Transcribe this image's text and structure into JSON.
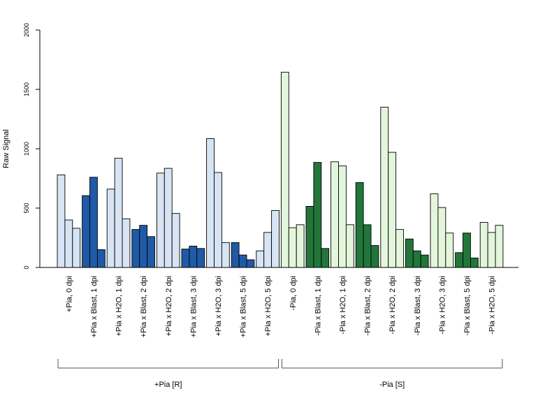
{
  "chart_data": {
    "type": "bar",
    "title": "",
    "ylabel": "Raw Signal",
    "xlabel": "",
    "ylim": [
      0,
      2000
    ],
    "yticks": [
      "0",
      "500",
      "1000",
      "1500",
      "2000"
    ],
    "legend": "none",
    "grid": false,
    "colors": {
      "plus_control": "#d6e4f4",
      "plus_blast": "#1f5aa6",
      "minus_control": "#e3f6dc",
      "minus_blast": "#22763a",
      "axis": "#000000",
      "bracket": "#555555"
    },
    "categories": [
      {
        "label": "+Pia, 0 dpi",
        "values": [
          780,
          400,
          330
        ],
        "fill": "plus_control"
      },
      {
        "label": "+Pia x Blast, 1 dpi",
        "values": [
          605,
          760,
          150
        ],
        "fill": "plus_blast"
      },
      {
        "label": "+Pia x H2O, 1 dpi",
        "values": [
          660,
          920,
          410
        ],
        "fill": "plus_control"
      },
      {
        "label": "+Pia x Blast, 2 dpi",
        "values": [
          320,
          355,
          260
        ],
        "fill": "plus_blast"
      },
      {
        "label": "+Pia x H2O, 2 dpi",
        "values": [
          795,
          835,
          455
        ],
        "fill": "plus_control"
      },
      {
        "label": "+Pia x Blast, 3 dpi",
        "values": [
          155,
          180,
          160
        ],
        "fill": "plus_blast"
      },
      {
        "label": "+Pia x H2O, 3 dpi",
        "values": [
          1085,
          800,
          210
        ],
        "fill": "plus_control"
      },
      {
        "label": "+Pia x Blast, 5 dpi",
        "values": [
          210,
          105,
          65
        ],
        "fill": "plus_blast"
      },
      {
        "label": "+Pia x H2O, 5 dpi",
        "values": [
          140,
          295,
          480
        ],
        "fill": "plus_control"
      },
      {
        "label": "-Pia, 0 dpi",
        "values": [
          1645,
          335,
          360
        ],
        "fill": "minus_control"
      },
      {
        "label": "-Pia x Blast, 1 dpi",
        "values": [
          515,
          885,
          160
        ],
        "fill": "minus_blast"
      },
      {
        "label": "-Pia x H2O, 1 dpi",
        "values": [
          890,
          855,
          360
        ],
        "fill": "minus_control"
      },
      {
        "label": "-Pia x Blast, 2 dpi",
        "values": [
          715,
          360,
          185
        ],
        "fill": "minus_blast"
      },
      {
        "label": "-Pia x H2O, 2 dpi",
        "values": [
          1350,
          970,
          320
        ],
        "fill": "minus_control"
      },
      {
        "label": "-Pia x Blast, 3 dpi",
        "values": [
          240,
          140,
          105
        ],
        "fill": "minus_blast"
      },
      {
        "label": "-Pia x H2O, 3 dpi",
        "values": [
          620,
          505,
          290
        ],
        "fill": "minus_control"
      },
      {
        "label": "-Pia x Blast, 5 dpi",
        "values": [
          125,
          290,
          80
        ],
        "fill": "minus_blast"
      },
      {
        "label": "-Pia x H2O, 5 dpi",
        "values": [
          380,
          295,
          355
        ],
        "fill": "minus_control"
      }
    ],
    "groups": [
      {
        "label": "+Pia [R]",
        "from": 0,
        "to": 8
      },
      {
        "label": "-Pia [S]",
        "from": 9,
        "to": 17
      }
    ]
  }
}
